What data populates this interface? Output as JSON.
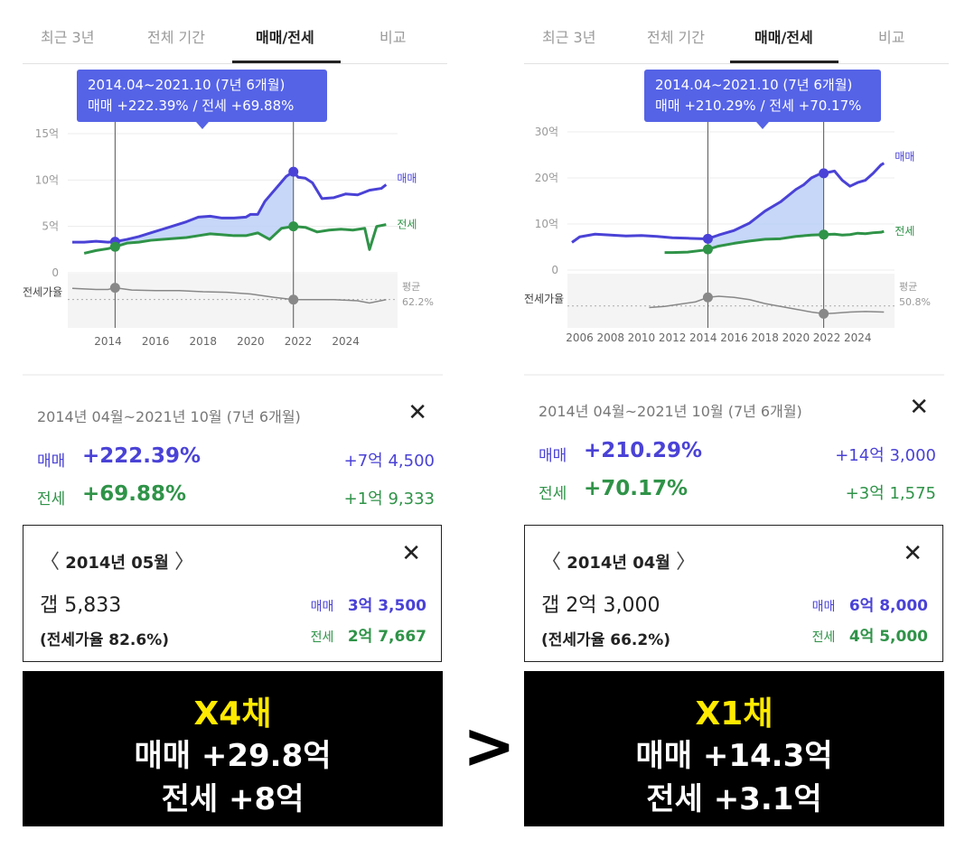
{
  "tabs": [
    "최근 3년",
    "전체 기간",
    "매매/전세",
    "비교"
  ],
  "colors": {
    "buy": "#4a42d6",
    "rent": "#2f9348",
    "ratio": "#888888",
    "tooltip": "#5563e6",
    "highlight_fill": "#bcd0f7"
  },
  "comparison_symbol": ">",
  "panels": [
    {
      "tooltip": {
        "line1": "2014.04~2021.10 (7년 6개월)",
        "line2": "매매 +222.39%  /  전세 +69.88%"
      },
      "summary": {
        "range": "2014년 04월~2021년 10월 (7년 6개월)",
        "buy_label": "매매",
        "buy_pct": "+222.39%",
        "buy_amount": "+7억 4,500",
        "rent_label": "전세",
        "rent_pct": "+69.88%",
        "rent_amount": "+1억 9,333"
      },
      "detail": {
        "month": "2014년 05월",
        "gap": "갭 5,833",
        "ratio": "(전세가율 82.6%)",
        "buy_label": "매매",
        "buy_value": "3억 3,500",
        "rent_label": "전세",
        "rent_value": "2억 7,667"
      },
      "banner": {
        "multiplier": "X4채",
        "buy_line": "매매 +29.8억",
        "rent_line": "전세 +8억"
      }
    },
    {
      "tooltip": {
        "line1": "2014.04~2021.10 (7년 6개월)",
        "line2": "매매 +210.29%  /  전세 +70.17%"
      },
      "summary": {
        "range": "2014년 04월~2021년 10월 (7년 6개월)",
        "buy_label": "매매",
        "buy_pct": "+210.29%",
        "buy_amount": "+14억 3,000",
        "rent_label": "전세",
        "rent_pct": "+70.17%",
        "rent_amount": "+3억 1,575"
      },
      "detail": {
        "month": "2014년 04월",
        "gap": "갭 2억 3,000",
        "ratio": "(전세가율 66.2%)",
        "buy_label": "매매",
        "buy_value": "6억 8,000",
        "rent_label": "전세",
        "rent_value": "4억 5,000"
      },
      "banner": {
        "multiplier": "X1채",
        "buy_line": "매매 +14.3억",
        "rent_line": "전세 +3.1억"
      }
    }
  ],
  "chart_data": [
    {
      "type": "line",
      "y_unit": "억",
      "yticks": [
        "15억",
        "10억",
        "5억",
        "0"
      ],
      "ylim": [
        0,
        15
      ],
      "xticks": [
        "2014",
        "2016",
        "2018",
        "2020",
        "2022",
        "2024"
      ],
      "xlim": [
        2012.5,
        2025.8
      ],
      "series_labels": {
        "buy": "매매",
        "rent": "전세"
      },
      "ratio_label": "전세가율",
      "avg_label": "평균",
      "avg_value": "62.2%",
      "selection": {
        "start": 2014.3,
        "end": 2021.8
      },
      "buy": {
        "x": [
          2012.5,
          2013.0,
          2013.5,
          2014.0,
          2014.3,
          2014.8,
          2015.3,
          2015.8,
          2016.3,
          2016.8,
          2017.3,
          2017.8,
          2018.3,
          2018.8,
          2019.3,
          2019.8,
          2020.0,
          2020.3,
          2020.6,
          2020.9,
          2021.2,
          2021.5,
          2021.8,
          2022.0,
          2022.3,
          2022.6,
          2023.0,
          2023.5,
          2024.0,
          2024.5,
          2025.0,
          2025.5,
          2025.7
        ],
        "y": [
          3.3,
          3.3,
          3.4,
          3.3,
          3.35,
          3.6,
          3.9,
          4.3,
          4.7,
          5.1,
          5.5,
          6.0,
          6.1,
          5.9,
          5.9,
          6.0,
          6.3,
          6.3,
          7.7,
          8.6,
          9.5,
          10.4,
          10.9,
          10.3,
          10.2,
          9.7,
          8.0,
          8.1,
          8.5,
          8.4,
          8.9,
          9.1,
          9.5
        ]
      },
      "rent": {
        "x": [
          2013.0,
          2013.5,
          2014.0,
          2014.3,
          2014.8,
          2015.3,
          2015.8,
          2016.3,
          2016.8,
          2017.3,
          2017.8,
          2018.3,
          2018.8,
          2019.3,
          2019.8,
          2020.3,
          2020.8,
          2021.3,
          2021.8,
          2022.3,
          2022.8,
          2023.3,
          2023.8,
          2024.3,
          2024.8,
          2025.0,
          2025.3,
          2025.7
        ],
        "y": [
          2.1,
          2.4,
          2.6,
          2.8,
          3.2,
          3.3,
          3.5,
          3.6,
          3.7,
          3.8,
          4.0,
          4.2,
          4.1,
          4.0,
          4.0,
          4.3,
          3.6,
          4.8,
          5.0,
          4.9,
          4.4,
          4.6,
          4.7,
          4.6,
          4.8,
          2.5,
          5.0,
          5.2
        ]
      },
      "ratio": {
        "x": [
          2012.5,
          2013.5,
          2014.0,
          2014.3,
          2015.0,
          2016.0,
          2017.0,
          2018.0,
          2019.0,
          2020.0,
          2021.0,
          2021.8,
          2022.5,
          2023.5,
          2024.5,
          2025.0,
          2025.7
        ],
        "y": [
          82,
          80,
          80,
          83,
          79,
          78,
          78,
          76,
          75,
          72,
          66,
          62,
          62,
          62,
          60,
          56,
          62
        ]
      },
      "avg": 62.2
    },
    {
      "type": "line",
      "y_unit": "억",
      "yticks": [
        "30억",
        "20억",
        "10억",
        "0"
      ],
      "ylim": [
        0,
        30
      ],
      "xticks": [
        "2006",
        "2008",
        "2010",
        "2012",
        "2014",
        "2016",
        "2018",
        "2020",
        "2022",
        "2024"
      ],
      "xlim": [
        2005.5,
        2025.8
      ],
      "series_labels": {
        "buy": "매매",
        "rent": "전세"
      },
      "ratio_label": "전세가율",
      "avg_label": "평균",
      "avg_value": "50.8%",
      "selection": {
        "start": 2014.3,
        "end": 2021.8
      },
      "buy": {
        "x": [
          2005.5,
          2006.0,
          2007.0,
          2008.0,
          2009.0,
          2010.0,
          2011.0,
          2012.0,
          2013.0,
          2014.0,
          2014.3,
          2015.0,
          2016.0,
          2017.0,
          2018.0,
          2019.0,
          2020.0,
          2020.5,
          2021.0,
          2021.5,
          2021.8,
          2022.5,
          2023.0,
          2023.5,
          2024.0,
          2024.5,
          2025.0,
          2025.5,
          2025.7
        ],
        "y": [
          6.0,
          7.2,
          7.8,
          7.6,
          7.4,
          7.5,
          7.3,
          7.0,
          6.9,
          6.8,
          6.8,
          7.6,
          8.6,
          10.2,
          12.8,
          14.8,
          17.5,
          18.5,
          20.0,
          20.8,
          21.0,
          21.5,
          19.5,
          18.2,
          19.0,
          19.5,
          21.0,
          22.8,
          23.2
        ]
      },
      "rent": {
        "x": [
          2011.5,
          2012.0,
          2013.0,
          2014.0,
          2014.3,
          2015.0,
          2016.0,
          2017.0,
          2018.0,
          2019.0,
          2020.0,
          2021.0,
          2021.8,
          2022.5,
          2023.0,
          2023.5,
          2024.0,
          2024.5,
          2025.0,
          2025.5,
          2025.7
        ],
        "y": [
          3.8,
          3.8,
          3.9,
          4.3,
          4.5,
          5.2,
          5.8,
          6.3,
          6.7,
          6.8,
          7.3,
          7.6,
          7.7,
          7.8,
          7.6,
          7.7,
          8.0,
          7.9,
          8.1,
          8.2,
          8.4
        ]
      },
      "ratio": {
        "x": [
          2010.5,
          2011.5,
          2012.5,
          2013.5,
          2014.3,
          2015.0,
          2016.0,
          2017.0,
          2018.0,
          2019.0,
          2020.0,
          2021.0,
          2021.8,
          2022.5,
          2023.5,
          2024.5,
          2025.7
        ],
        "y": [
          48,
          50,
          54,
          58,
          66,
          68,
          66,
          62,
          55,
          50,
          45,
          40,
          37,
          38,
          40,
          41,
          40
        ]
      },
      "avg": 50.8
    }
  ]
}
